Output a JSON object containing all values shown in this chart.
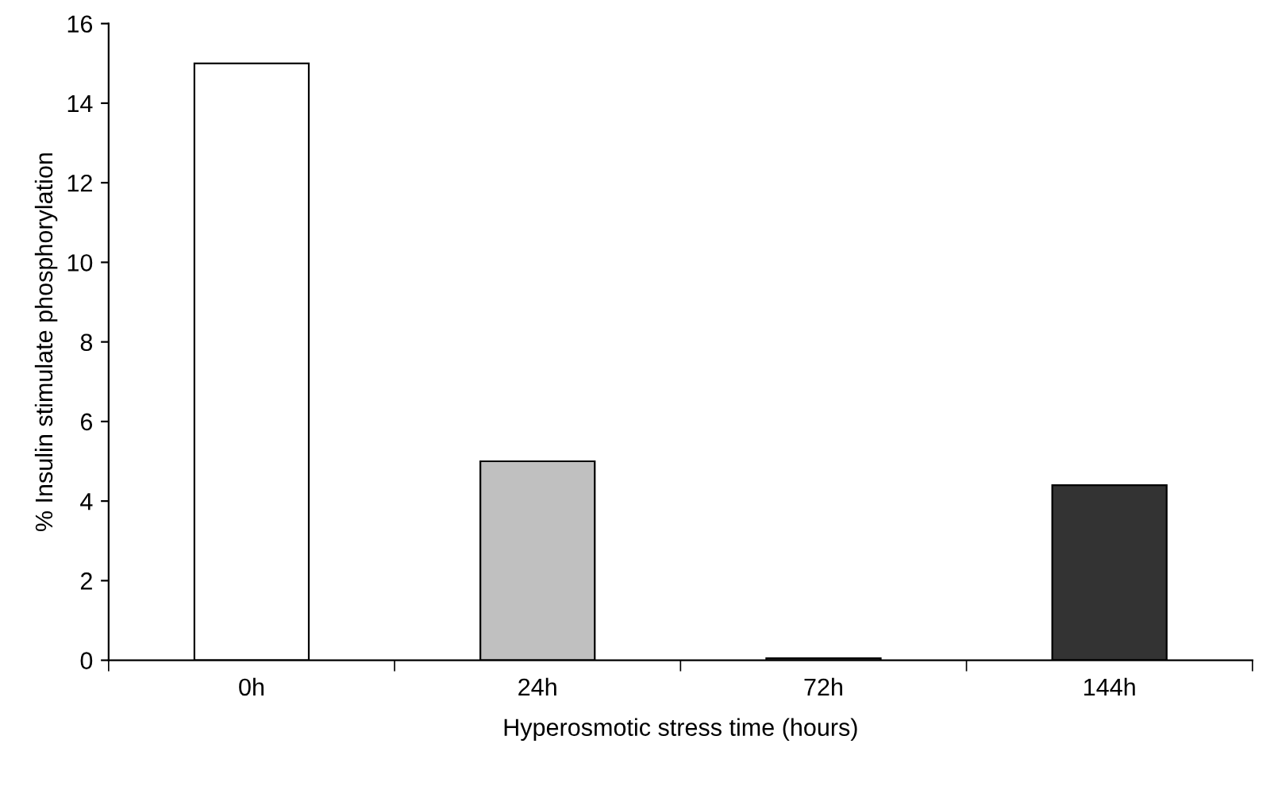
{
  "chart_data": {
    "type": "bar",
    "xlabel": "Hyperosmotic stress time (hours)",
    "ylabel": "% Insulin stimulate phosphorylation",
    "categories": [
      "0h",
      "24h",
      "72h",
      "144h"
    ],
    "values": [
      15,
      5,
      0.05,
      4.4
    ],
    "colors": [
      "#ffffff",
      "#c0c0c0",
      "#c0c0c0",
      "#333333"
    ],
    "ylim": [
      0,
      16
    ],
    "yticks": [
      0,
      2,
      4,
      6,
      8,
      10,
      12,
      14,
      16
    ],
    "grid": false
  }
}
